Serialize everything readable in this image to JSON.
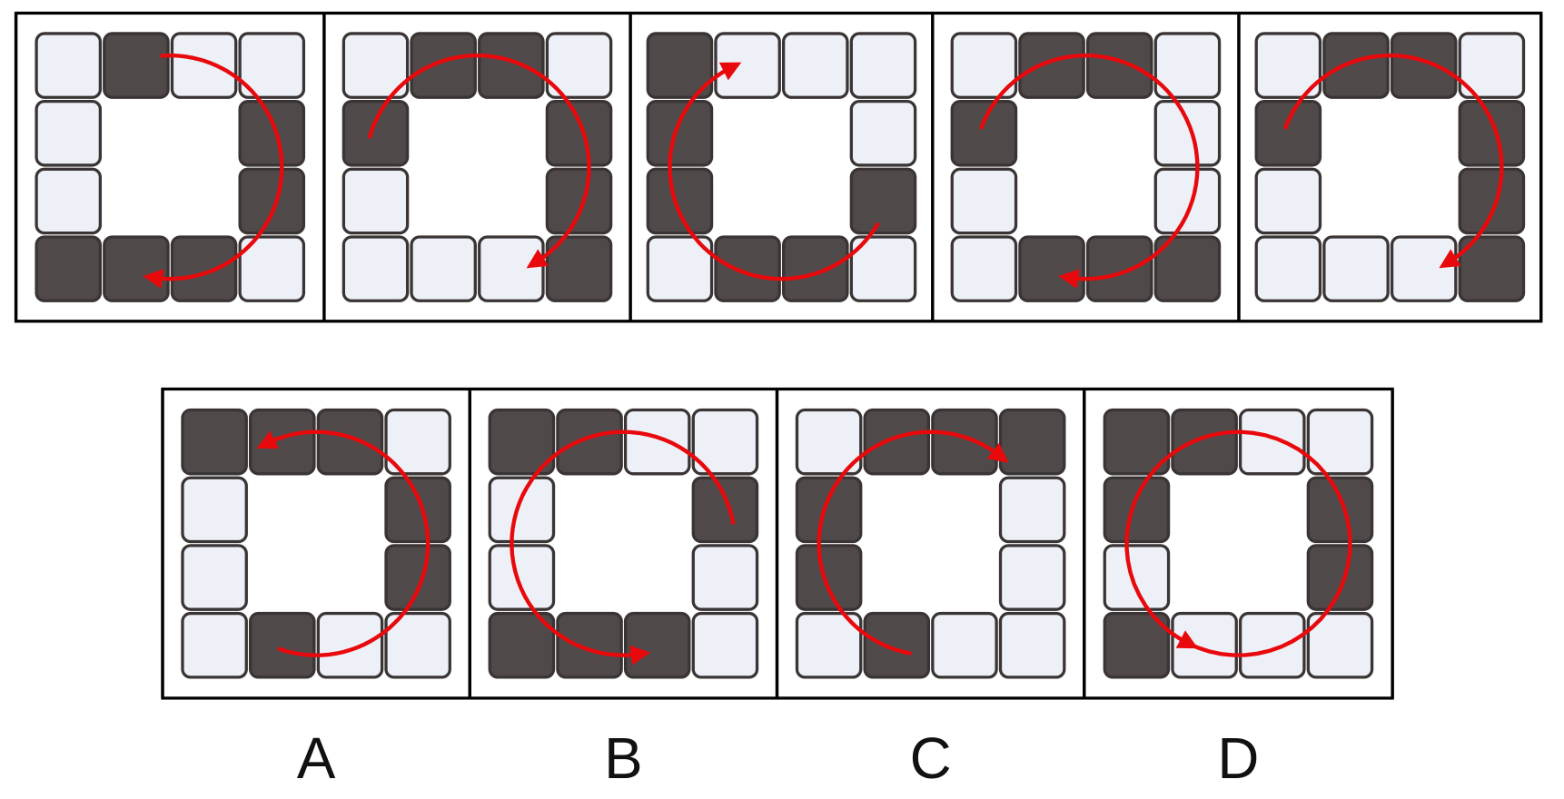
{
  "options": {
    "labels": [
      "A",
      "B",
      "C",
      "D"
    ]
  }
}
